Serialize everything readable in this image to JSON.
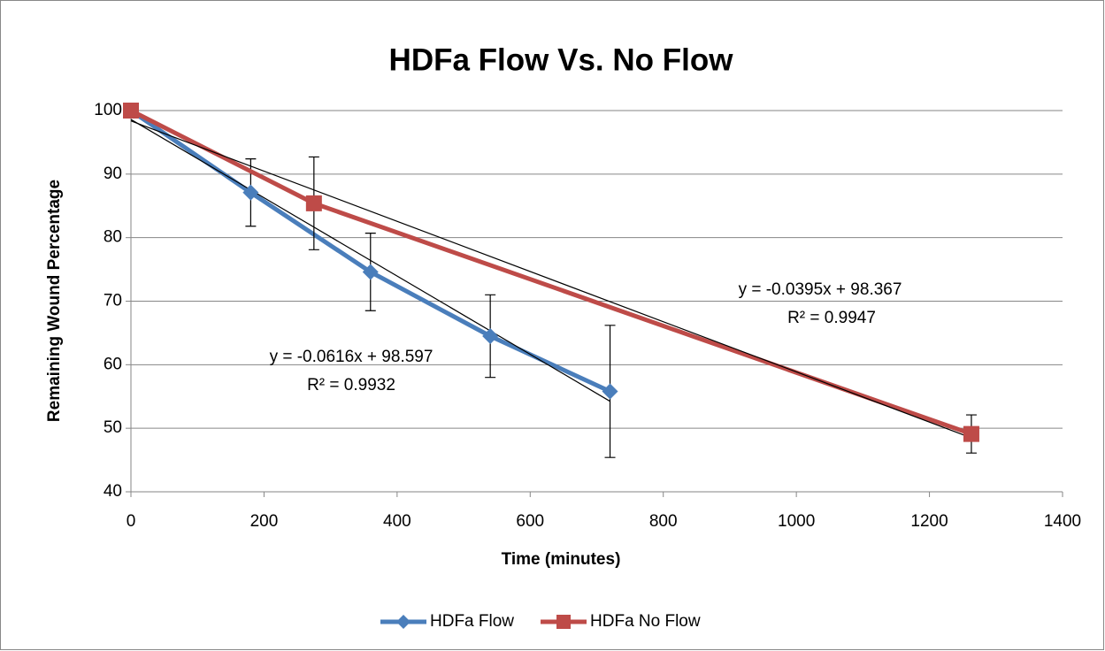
{
  "chart_data": {
    "type": "line",
    "title": "HDFa Flow Vs. No Flow",
    "xlabel": "Time (minutes)",
    "ylabel": "Remaining Wound Percentage",
    "xlim": [
      0,
      1400
    ],
    "xticks": [
      0,
      200,
      400,
      600,
      800,
      1000,
      1200,
      1400
    ],
    "ylim": [
      40,
      100
    ],
    "yticks": [
      40,
      50,
      60,
      70,
      80,
      90,
      100
    ],
    "grid": true,
    "legend": "bottom",
    "series": [
      {
        "name": "HDFa Flow",
        "color": "#4a7ebb",
        "marker": "diamond",
        "x": [
          0,
          180,
          360,
          540,
          720
        ],
        "values": [
          100,
          87.1,
          74.6,
          64.5,
          55.8
        ],
        "errors": [
          null,
          5.3,
          6.1,
          6.5,
          10.4
        ],
        "trendline": {
          "slope": -0.0616,
          "intercept": 98.597,
          "equation": "y = -0.0616x + 98.597",
          "r2": "R² = 0.9932"
        }
      },
      {
        "name": "HDFa No Flow",
        "color": "#be4b48",
        "marker": "square",
        "x": [
          0,
          275,
          1263
        ],
        "values": [
          100,
          85.4,
          49.1
        ],
        "errors": [
          null,
          7.3,
          3.0
        ],
        "trendline": {
          "slope": -0.0395,
          "intercept": 98.367,
          "equation": "y = -0.0395x + 98.367",
          "r2": "R² = 0.9947"
        }
      }
    ]
  }
}
